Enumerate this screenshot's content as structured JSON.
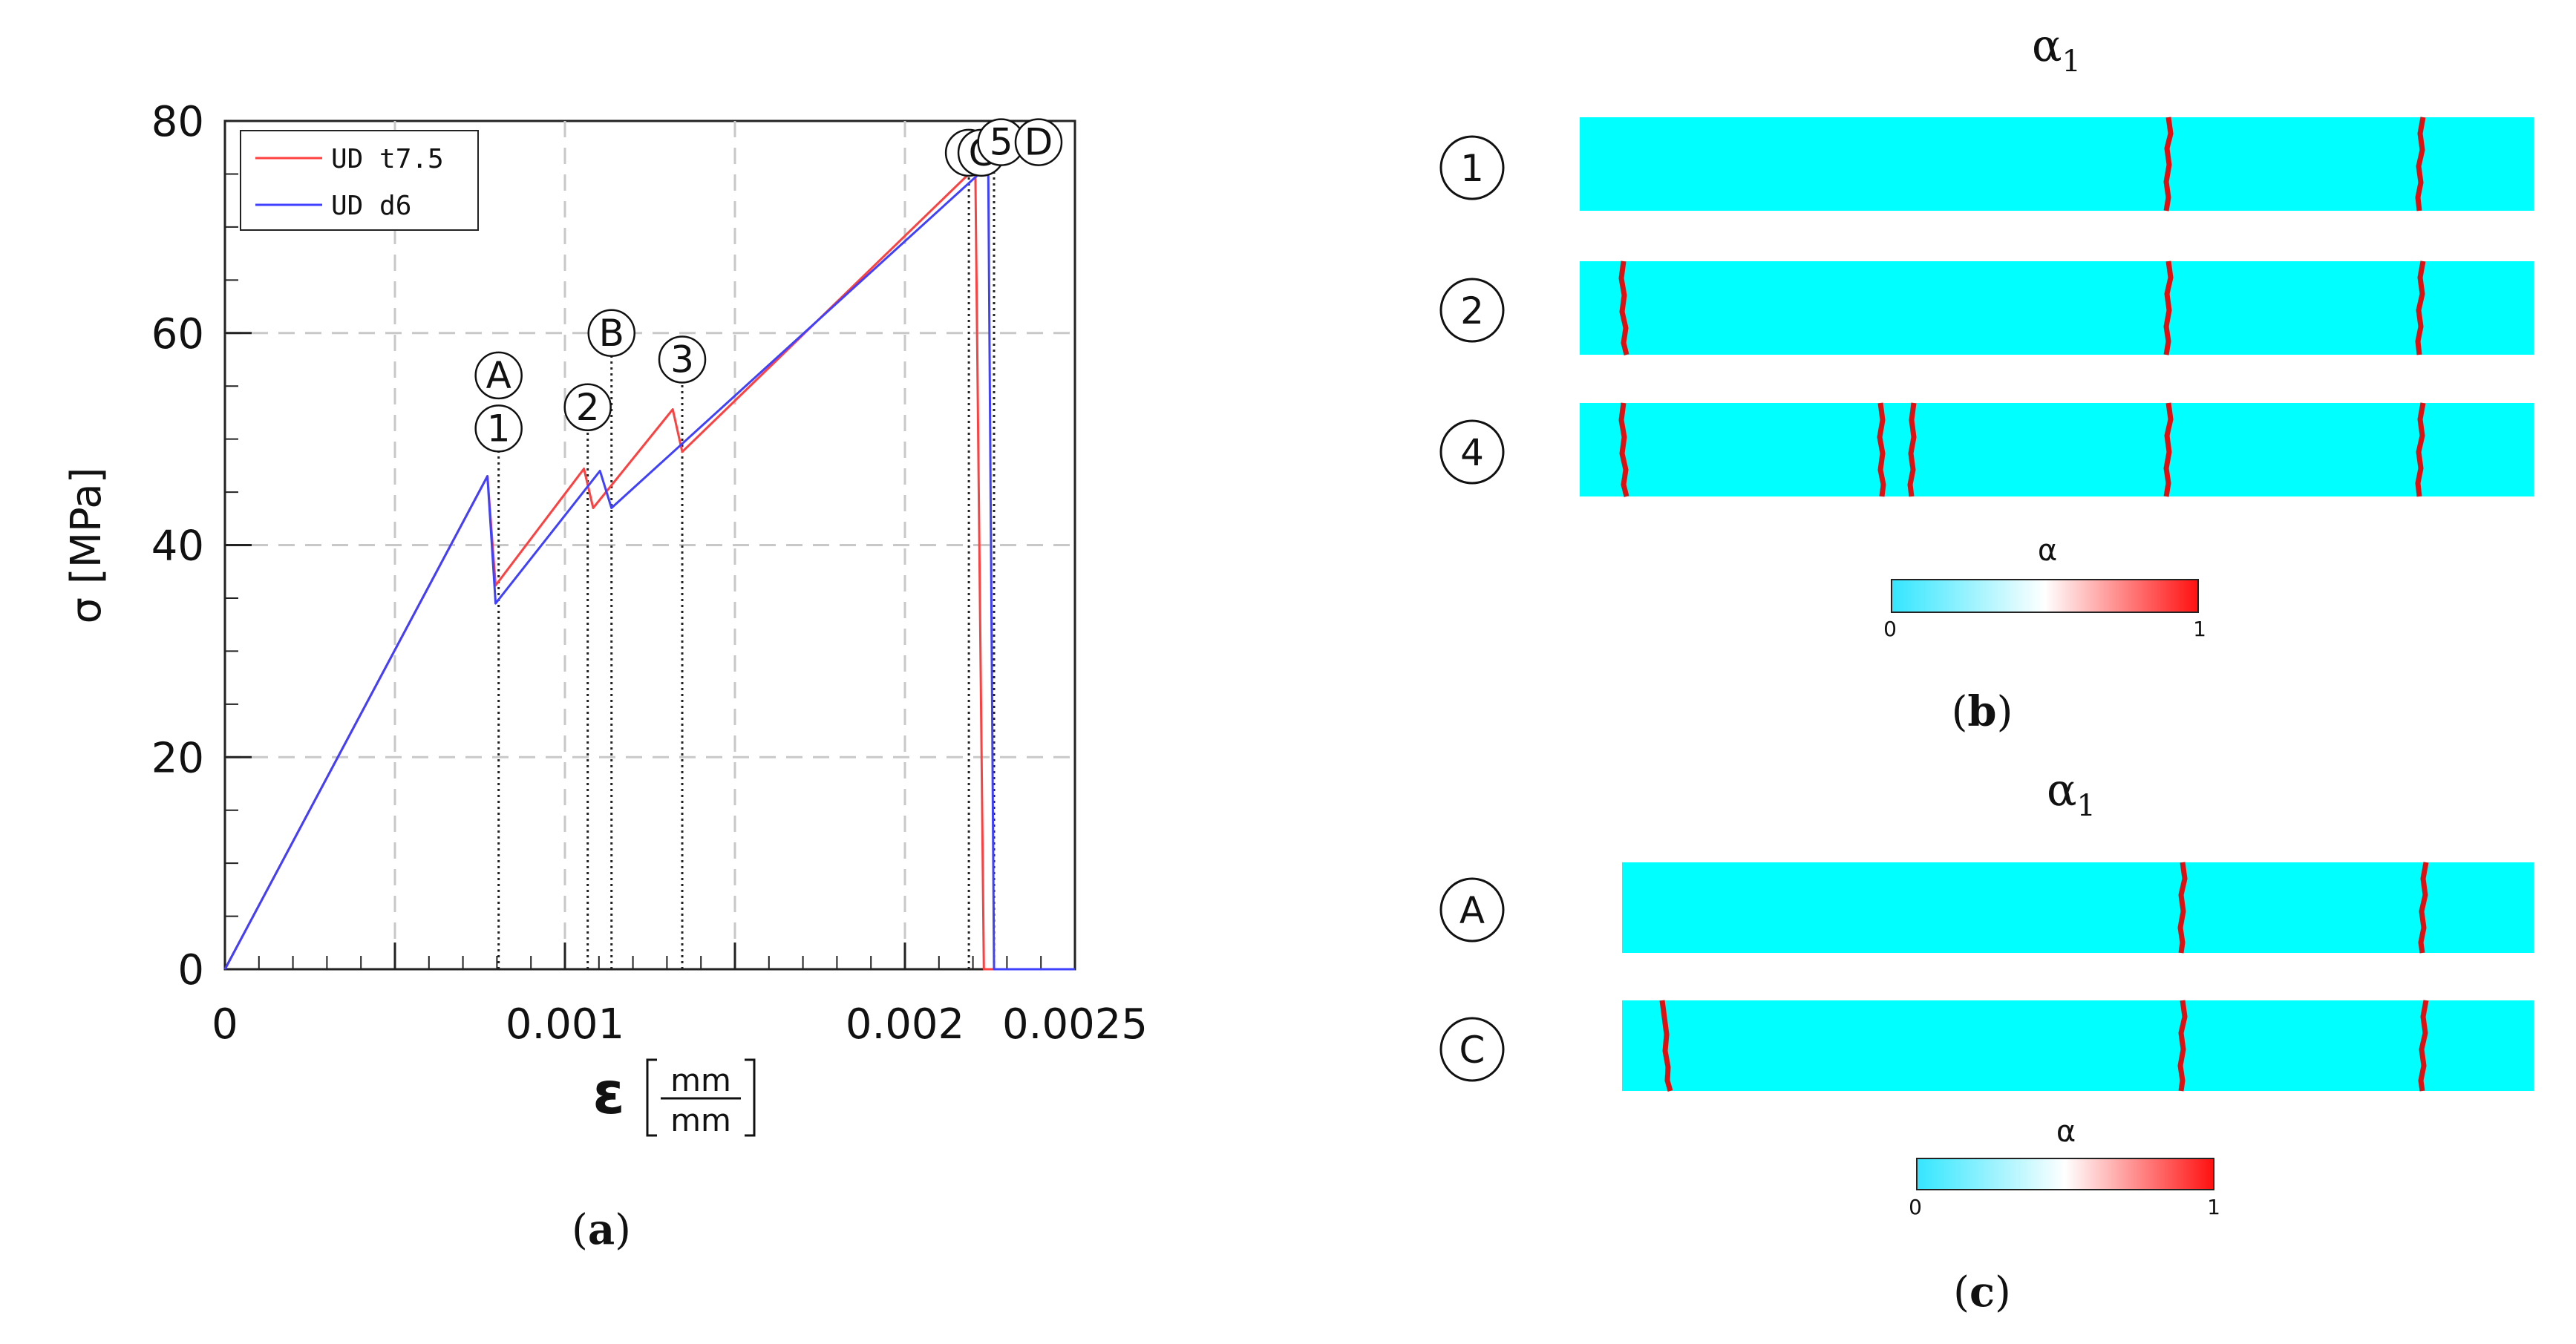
{
  "chart_data": {
    "type": "line",
    "xlabel": "ε",
    "xlabel_unit_num": "mm",
    "xlabel_unit_den": "mm",
    "ylabel": "σ [MPa]",
    "xlim": [
      0,
      0.0025
    ],
    "ylim": [
      0,
      80
    ],
    "xticks": [
      0,
      0.0005,
      0.001,
      0.0015,
      0.002,
      0.0025
    ],
    "xtick_labels": [
      "0",
      "",
      "0.001",
      "",
      "0.002",
      "0.0025"
    ],
    "yticks": [
      0,
      20,
      40,
      60,
      80
    ],
    "ytick_labels": [
      "0",
      "20",
      "40",
      "60",
      "80"
    ],
    "grid": true,
    "legend_position": "top-left",
    "series": [
      {
        "name": "UD t7.5",
        "color": "#ff4040",
        "x": [
          0,
          0.000772,
          0.000796,
          0.001056,
          0.001083,
          0.001317,
          0.001345,
          0.002207,
          0.002232,
          0.002237,
          0.0025
        ],
        "y": [
          0,
          46.5,
          36.2,
          47.2,
          43.5,
          52.8,
          48.8,
          75.6,
          0,
          0,
          0
        ]
      },
      {
        "name": "UD d6",
        "color": "#4040ff",
        "x": [
          0,
          0.000772,
          0.000796,
          0.001103,
          0.001137,
          0.002245,
          0.002262,
          0.0025
        ],
        "y": [
          0,
          46.5,
          34.5,
          47.0,
          43.5,
          75.8,
          0,
          0
        ]
      }
    ],
    "markers": [
      {
        "label": "A",
        "x": 0.000805,
        "y": 56
      },
      {
        "label": "1",
        "x": 0.000805,
        "y": 51
      },
      {
        "label": "2",
        "x": 0.001067,
        "y": 53
      },
      {
        "label": "B",
        "x": 0.001137,
        "y": 60
      },
      {
        "label": "3",
        "x": 0.001345,
        "y": 57.5
      },
      {
        "label": "4",
        "x": 0.002188,
        "y": 77
      },
      {
        "label": "C",
        "x": 0.002225,
        "y": 77
      },
      {
        "label": "5",
        "x": 0.002283,
        "y": 78
      },
      {
        "label": "D",
        "x": 0.002393,
        "y": 78
      }
    ],
    "dotted_guides": [
      0.000805,
      0.001067,
      0.001137,
      0.001345,
      0.002188,
      0.002262
    ]
  },
  "panels": {
    "a_label": "a",
    "b_label": "b",
    "c_label": "c",
    "b_title": "α",
    "b_title_sub": "1",
    "c_title": "α",
    "c_title_sub": "1",
    "b_rows": [
      "1",
      "2",
      "4"
    ],
    "c_rows": [
      "A",
      "C"
    ],
    "colorbar_label": "α",
    "colorbar_min": "0",
    "colorbar_max": "1",
    "colorbar_colors": [
      "#33e6ff",
      "#ffffff",
      "#ff1010"
    ],
    "strip_color": "#00ffff",
    "crack_color": "#dd1111"
  }
}
